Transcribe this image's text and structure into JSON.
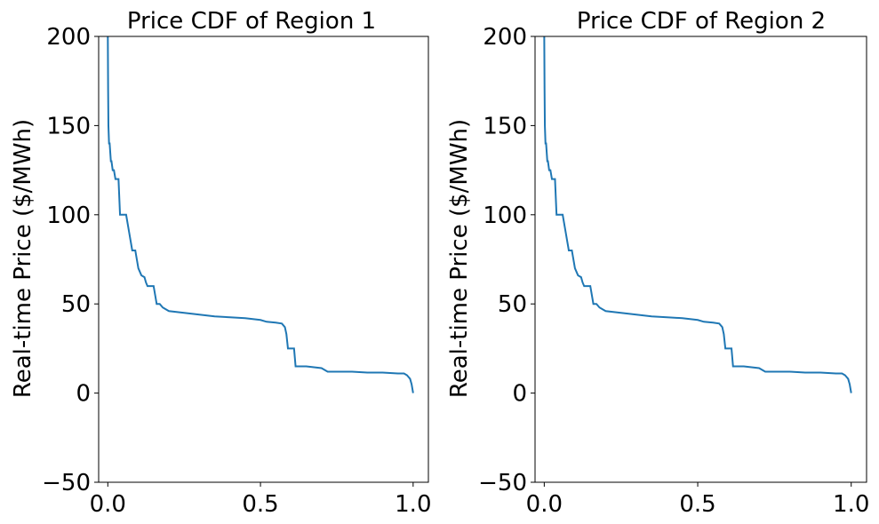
{
  "chart_data": [
    {
      "type": "line",
      "title": "Price CDF of Region 1",
      "xlabel": "",
      "ylabel": "Real-time Price ($/MWh)",
      "xlim": [
        -0.03,
        1.05
      ],
      "ylim": [
        -50,
        200
      ],
      "xticks": [
        0.0,
        0.5,
        1.0
      ],
      "xtick_labels": [
        "0.0",
        "0.5",
        "1.0"
      ],
      "yticks": [
        -50,
        0,
        50,
        100,
        150,
        200
      ],
      "ytick_labels": [
        "−50",
        "0",
        "50",
        "100",
        "150",
        "200"
      ],
      "grid": false,
      "line_color": "#1f77b4",
      "series": [
        {
          "x": [
            0.0,
            0.001,
            0.002,
            0.004,
            0.006,
            0.008,
            0.01,
            0.012,
            0.016,
            0.02,
            0.025,
            0.03,
            0.035,
            0.04,
            0.05,
            0.06,
            0.07,
            0.075,
            0.08,
            0.09,
            0.1,
            0.105,
            0.11,
            0.12,
            0.125,
            0.13,
            0.14,
            0.15,
            0.16,
            0.165,
            0.17,
            0.18,
            0.19,
            0.2,
            0.25,
            0.3,
            0.35,
            0.4,
            0.45,
            0.5,
            0.52,
            0.55,
            0.57,
            0.575,
            0.58,
            0.585,
            0.59,
            0.6,
            0.61,
            0.615,
            0.62,
            0.65,
            0.7,
            0.71,
            0.72,
            0.73,
            0.8,
            0.85,
            0.9,
            0.95,
            0.97,
            0.98,
            0.985,
            0.99,
            0.995,
            1.0
          ],
          "y": [
            200,
            170,
            150,
            140,
            140,
            135,
            130,
            130,
            125,
            125,
            120,
            120,
            120,
            100,
            100,
            100,
            90,
            85,
            80,
            80,
            70,
            68,
            66,
            65,
            62,
            60,
            60,
            60,
            50,
            50,
            50,
            48,
            47,
            46,
            45,
            44,
            43,
            42.5,
            42,
            41,
            40,
            39.5,
            39,
            38,
            37,
            33,
            25,
            25,
            25,
            15,
            15,
            15,
            14,
            13,
            12,
            12,
            12,
            11.5,
            11.5,
            11,
            11,
            10,
            9,
            8,
            5,
            0
          ]
        }
      ]
    },
    {
      "type": "line",
      "title": "Price CDF of Region 2",
      "xlabel": "",
      "ylabel": "Real-time Price ($/MWh)",
      "xlim": [
        -0.03,
        1.05
      ],
      "ylim": [
        -50,
        200
      ],
      "xticks": [
        0.0,
        0.5,
        1.0
      ],
      "xtick_labels": [
        "0.0",
        "0.5",
        "1.0"
      ],
      "yticks": [
        -50,
        0,
        50,
        100,
        150,
        200
      ],
      "ytick_labels": [
        "−50",
        "0",
        "50",
        "100",
        "150",
        "200"
      ],
      "grid": false,
      "line_color": "#1f77b4",
      "series": [
        {
          "x": [
            0.0,
            0.001,
            0.002,
            0.004,
            0.006,
            0.008,
            0.01,
            0.012,
            0.016,
            0.02,
            0.025,
            0.03,
            0.035,
            0.04,
            0.05,
            0.06,
            0.07,
            0.075,
            0.08,
            0.09,
            0.1,
            0.105,
            0.11,
            0.12,
            0.125,
            0.13,
            0.14,
            0.15,
            0.16,
            0.165,
            0.17,
            0.18,
            0.19,
            0.2,
            0.25,
            0.3,
            0.35,
            0.4,
            0.45,
            0.5,
            0.52,
            0.55,
            0.57,
            0.575,
            0.58,
            0.585,
            0.59,
            0.6,
            0.61,
            0.615,
            0.62,
            0.65,
            0.7,
            0.71,
            0.72,
            0.73,
            0.8,
            0.85,
            0.9,
            0.95,
            0.97,
            0.98,
            0.985,
            0.99,
            0.995,
            1.0
          ],
          "y": [
            200,
            170,
            150,
            140,
            140,
            135,
            130,
            130,
            125,
            125,
            120,
            120,
            120,
            100,
            100,
            100,
            90,
            85,
            80,
            80,
            70,
            68,
            66,
            65,
            62,
            60,
            60,
            60,
            50,
            50,
            50,
            48,
            47,
            46,
            45,
            44,
            43,
            42.5,
            42,
            41,
            40,
            39.5,
            39,
            38,
            37,
            33,
            25,
            25,
            25,
            15,
            15,
            15,
            14,
            13,
            12,
            12,
            12,
            11.5,
            11.5,
            11,
            11,
            10,
            9,
            8,
            5,
            0
          ]
        }
      ]
    }
  ]
}
